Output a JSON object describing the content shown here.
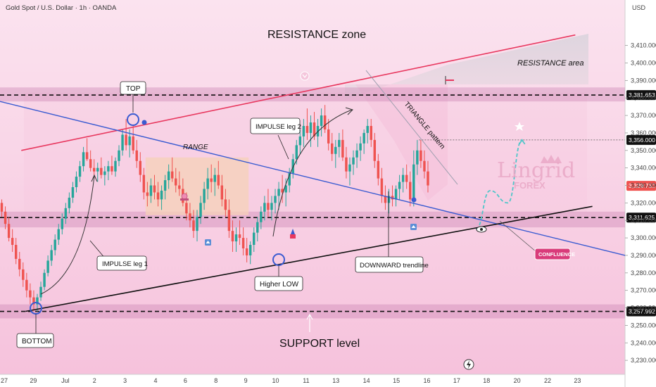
{
  "header": {
    "symbol_title": "Gold Spot / U.S. Dollar · 1h · OANDA",
    "currency": "USD"
  },
  "colors": {
    "background_top": "#fbe3ef",
    "background_bottom": "#f6c2dc",
    "up_candle": "#26a69a",
    "down_candle": "#ef5350",
    "resistance_line": "#e8385f",
    "downtrend_line": "#3a5bd1",
    "support_line": "#111111",
    "confluence_badge": "#d93b7a",
    "price_badge_dark": "#111111",
    "price_badge_current": "#ef5350"
  },
  "annotations": {
    "resistance_zone": "RESISTANCE zone",
    "resistance_area": "RESISTANCE area",
    "support_level": "SUPPORT level",
    "top": "TOP",
    "bottom": "BOTTOM",
    "higher_low": "Higher LOW",
    "range": "RANGE",
    "impulse_leg_1": "IMPULSE leg 1",
    "impulse_leg_2": "IMPULSE leg 2",
    "triangle_pattern": "TRIANGLE pattern",
    "downward_trendline": "DOWNWARD trendline",
    "confluence": "CONFLUENCE"
  },
  "watermark": {
    "brand": "Lingrid",
    "sub": "FOREX"
  },
  "chart_data": {
    "type": "candlestick",
    "title": "Gold Spot / U.S. Dollar · 1h · OANDA",
    "y_unit": "USD",
    "ylim": [
      3222,
      3436
    ],
    "y_ticks": [
      3230,
      3240,
      3250,
      3260,
      3270,
      3280,
      3290,
      3300,
      3310,
      3320,
      3330,
      3340,
      3350,
      3360,
      3370,
      3380,
      3390,
      3400,
      3410
    ],
    "x_ticks": [
      {
        "label": "27",
        "t": 0.6
      },
      {
        "label": "29",
        "t": 4.7
      },
      {
        "label": "Jul",
        "t": 9.2
      },
      {
        "label": "2",
        "t": 13.3
      },
      {
        "label": "3",
        "t": 17.6
      },
      {
        "label": "4",
        "t": 21.9
      },
      {
        "label": "6",
        "t": 26.1
      },
      {
        "label": "8",
        "t": 30.4
      },
      {
        "label": "9",
        "t": 34.6
      },
      {
        "label": "10",
        "t": 38.8
      },
      {
        "label": "11",
        "t": 43.1
      },
      {
        "label": "13",
        "t": 47.3
      },
      {
        "label": "14",
        "t": 51.6
      },
      {
        "label": "15",
        "t": 55.8
      },
      {
        "label": "16",
        "t": 60.1
      },
      {
        "label": "17",
        "t": 64.3
      },
      {
        "label": "18",
        "t": 68.5
      },
      {
        "label": "20",
        "t": 72.8
      },
      {
        "label": "22",
        "t": 77.1
      },
      {
        "label": "23",
        "t": 81.3
      }
    ],
    "price_levels": [
      {
        "value": 3381.653,
        "label": "3,381.653",
        "style": "dashed",
        "badge": "dark"
      },
      {
        "value": 3356.0,
        "label": "3,356.000",
        "style": "dotted",
        "badge": "dark"
      },
      {
        "value": 3329.73,
        "label": "3,329.730",
        "style": "none",
        "badge": "current"
      },
      {
        "value": 3311.625,
        "label": "3,311.625",
        "style": "dashed",
        "badge": "dark"
      },
      {
        "value": 3257.992,
        "label": "3,257.992",
        "style": "dashed",
        "badge": "dark"
      }
    ],
    "zones": [
      {
        "name": "resistance-band",
        "from": 3378,
        "to": 3386
      },
      {
        "name": "mid-support-band",
        "from": 3306,
        "to": 3315
      },
      {
        "name": "support-band",
        "from": 3254,
        "to": 3262
      }
    ],
    "range_box": {
      "t0": 20.5,
      "t1": 35,
      "low": 3313,
      "high": 3346
    },
    "trendlines": [
      {
        "name": "resistance-trendline",
        "p1": [
          3,
          3350
        ],
        "p2": [
          81,
          3416
        ]
      },
      {
        "name": "downward-trendline",
        "p1": [
          0,
          3378
        ],
        "p2": [
          88,
          3290
        ]
      },
      {
        "name": "support-trendline",
        "p1": [
          3.6,
          3258
        ],
        "p2": [
          83.4,
          3318
        ]
      }
    ],
    "projection": [
      [
        67,
        3305
      ],
      [
        69,
        3327
      ],
      [
        71.5,
        3320
      ],
      [
        73.5,
        3356
      ]
    ],
    "candles": [
      [
        0,
        3320,
        3322,
        3312,
        3315
      ],
      [
        0.5,
        3315,
        3318,
        3305,
        3308
      ],
      [
        1,
        3308,
        3312,
        3298,
        3300
      ],
      [
        1.5,
        3300,
        3305,
        3292,
        3296
      ],
      [
        2,
        3296,
        3300,
        3285,
        3288
      ],
      [
        2.5,
        3288,
        3292,
        3278,
        3282
      ],
      [
        3,
        3282,
        3286,
        3272,
        3276
      ],
      [
        3.5,
        3276,
        3280,
        3266,
        3270
      ],
      [
        4,
        3270,
        3274,
        3262,
        3266
      ],
      [
        4.5,
        3266,
        3270,
        3258,
        3262
      ],
      [
        5,
        3262,
        3268,
        3258,
        3266
      ],
      [
        5.5,
        3266,
        3275,
        3264,
        3272
      ],
      [
        6,
        3272,
        3282,
        3270,
        3280
      ],
      [
        6.5,
        3280,
        3290,
        3278,
        3287
      ],
      [
        7,
        3287,
        3296,
        3284,
        3293
      ],
      [
        7.5,
        3293,
        3302,
        3290,
        3299
      ],
      [
        8,
        3299,
        3308,
        3296,
        3305
      ],
      [
        8.5,
        3305,
        3314,
        3302,
        3311
      ],
      [
        9,
        3311,
        3320,
        3308,
        3317
      ],
      [
        9.5,
        3317,
        3326,
        3314,
        3323
      ],
      [
        10,
        3323,
        3332,
        3320,
        3329
      ],
      [
        10.5,
        3329,
        3338,
        3326,
        3335
      ],
      [
        11,
        3335,
        3344,
        3332,
        3341
      ],
      [
        11.5,
        3341,
        3352,
        3338,
        3349
      ],
      [
        12,
        3349,
        3357,
        3344,
        3345
      ],
      [
        12.5,
        3345,
        3350,
        3338,
        3340
      ],
      [
        13,
        3340,
        3345,
        3334,
        3338
      ],
      [
        13.5,
        3338,
        3343,
        3332,
        3340
      ],
      [
        14,
        3340,
        3346,
        3334,
        3336
      ],
      [
        14.5,
        3336,
        3341,
        3330,
        3338
      ],
      [
        15,
        3338,
        3344,
        3333,
        3341
      ],
      [
        15.5,
        3341,
        3347,
        3336,
        3338
      ],
      [
        16,
        3338,
        3346,
        3335,
        3344
      ],
      [
        16.5,
        3344,
        3353,
        3341,
        3350
      ],
      [
        17,
        3350,
        3362,
        3347,
        3359
      ],
      [
        17.5,
        3359,
        3368,
        3350,
        3353
      ],
      [
        18,
        3353,
        3362,
        3346,
        3358
      ],
      [
        18.5,
        3358,
        3364,
        3348,
        3350
      ],
      [
        19,
        3350,
        3356,
        3340,
        3344
      ],
      [
        19.5,
        3344,
        3349,
        3332,
        3336
      ],
      [
        20,
        3336,
        3340,
        3322,
        3326
      ],
      [
        20.5,
        3326,
        3332,
        3318,
        3324
      ],
      [
        21,
        3324,
        3334,
        3320,
        3330
      ],
      [
        21.5,
        3330,
        3336,
        3322,
        3326
      ],
      [
        22,
        3326,
        3332,
        3318,
        3322
      ],
      [
        22.5,
        3322,
        3330,
        3316,
        3327
      ],
      [
        23,
        3327,
        3336,
        3322,
        3333
      ],
      [
        23.5,
        3333,
        3342,
        3328,
        3338
      ],
      [
        24,
        3338,
        3346,
        3332,
        3334
      ],
      [
        24.5,
        3334,
        3340,
        3326,
        3330
      ],
      [
        25,
        3330,
        3338,
        3324,
        3328
      ],
      [
        25.5,
        3328,
        3334,
        3318,
        3320
      ],
      [
        26,
        3320,
        3326,
        3310,
        3314
      ],
      [
        26.5,
        3314,
        3320,
        3306,
        3310
      ],
      [
        27,
        3310,
        3316,
        3300,
        3304
      ],
      [
        27.5,
        3304,
        3316,
        3298,
        3312
      ],
      [
        28,
        3312,
        3324,
        3308,
        3320
      ],
      [
        28.5,
        3320,
        3332,
        3316,
        3328
      ],
      [
        29,
        3328,
        3340,
        3322,
        3334
      ],
      [
        29.5,
        3334,
        3342,
        3326,
        3332
      ],
      [
        30,
        3332,
        3340,
        3324,
        3336
      ],
      [
        30.5,
        3336,
        3344,
        3328,
        3330
      ],
      [
        31,
        3330,
        3336,
        3318,
        3322
      ],
      [
        31.5,
        3322,
        3328,
        3312,
        3316
      ],
      [
        32,
        3316,
        3322,
        3300,
        3304
      ],
      [
        32.5,
        3304,
        3310,
        3292,
        3298
      ],
      [
        33,
        3298,
        3306,
        3292,
        3302
      ],
      [
        33.5,
        3302,
        3310,
        3296,
        3300
      ],
      [
        34,
        3300,
        3306,
        3290,
        3294
      ],
      [
        34.5,
        3294,
        3300,
        3286,
        3290
      ],
      [
        35,
        3290,
        3298,
        3285,
        3296
      ],
      [
        35.5,
        3296,
        3306,
        3292,
        3303
      ],
      [
        36,
        3303,
        3312,
        3298,
        3309
      ],
      [
        36.5,
        3309,
        3318,
        3305,
        3315
      ],
      [
        37,
        3315,
        3324,
        3310,
        3320
      ],
      [
        37.5,
        3320,
        3328,
        3312,
        3316
      ],
      [
        38,
        3316,
        3324,
        3310,
        3320
      ],
      [
        38.5,
        3320,
        3328,
        3314,
        3324
      ],
      [
        39,
        3324,
        3332,
        3316,
        3328
      ],
      [
        39.5,
        3328,
        3336,
        3320,
        3326
      ],
      [
        40,
        3326,
        3334,
        3318,
        3330
      ],
      [
        40.5,
        3330,
        3340,
        3326,
        3337
      ],
      [
        41,
        3337,
        3348,
        3334,
        3345
      ],
      [
        41.5,
        3345,
        3356,
        3342,
        3353
      ],
      [
        42,
        3353,
        3362,
        3348,
        3358
      ],
      [
        42.5,
        3358,
        3368,
        3352,
        3364
      ],
      [
        43,
        3364,
        3374,
        3356,
        3360
      ],
      [
        43.5,
        3360,
        3370,
        3352,
        3366
      ],
      [
        44,
        3366,
        3372,
        3356,
        3358
      ],
      [
        44.5,
        3358,
        3368,
        3352,
        3364
      ],
      [
        45,
        3364,
        3374,
        3358,
        3370
      ],
      [
        45.5,
        3370,
        3376,
        3360,
        3362
      ],
      [
        46,
        3362,
        3368,
        3350,
        3354
      ],
      [
        46.5,
        3354,
        3360,
        3344,
        3348
      ],
      [
        47,
        3348,
        3356,
        3340,
        3352
      ],
      [
        47.5,
        3352,
        3360,
        3346,
        3356
      ],
      [
        48,
        3356,
        3362,
        3344,
        3346
      ],
      [
        48.5,
        3346,
        3352,
        3334,
        3338
      ],
      [
        49,
        3338,
        3346,
        3330,
        3342
      ],
      [
        49.5,
        3342,
        3350,
        3336,
        3346
      ],
      [
        50,
        3346,
        3354,
        3340,
        3350
      ],
      [
        50.5,
        3350,
        3358,
        3344,
        3354
      ],
      [
        51,
        3354,
        3362,
        3348,
        3360
      ],
      [
        51.5,
        3360,
        3368,
        3354,
        3364
      ],
      [
        52,
        3364,
        3368,
        3352,
        3356
      ],
      [
        52.5,
        3356,
        3360,
        3340,
        3344
      ],
      [
        53,
        3344,
        3348,
        3330,
        3334
      ],
      [
        53.5,
        3334,
        3340,
        3320,
        3324
      ],
      [
        54,
        3324,
        3330,
        3316,
        3320
      ],
      [
        54.5,
        3320,
        3328,
        3314,
        3324
      ],
      [
        55,
        3324,
        3330,
        3318,
        3322
      ],
      [
        55.5,
        3322,
        3330,
        3318,
        3328
      ],
      [
        56,
        3328,
        3336,
        3322,
        3332
      ],
      [
        56.5,
        3332,
        3340,
        3326,
        3336
      ],
      [
        57,
        3336,
        3342,
        3328,
        3332
      ],
      [
        57.5,
        3332,
        3338,
        3318,
        3322
      ],
      [
        58,
        3322,
        3350,
        3318,
        3342
      ],
      [
        58.5,
        3342,
        3356,
        3336,
        3350
      ],
      [
        59,
        3350,
        3356,
        3340,
        3344
      ],
      [
        59.5,
        3344,
        3350,
        3334,
        3338
      ],
      [
        60,
        3338,
        3344,
        3326,
        3330
      ]
    ]
  }
}
